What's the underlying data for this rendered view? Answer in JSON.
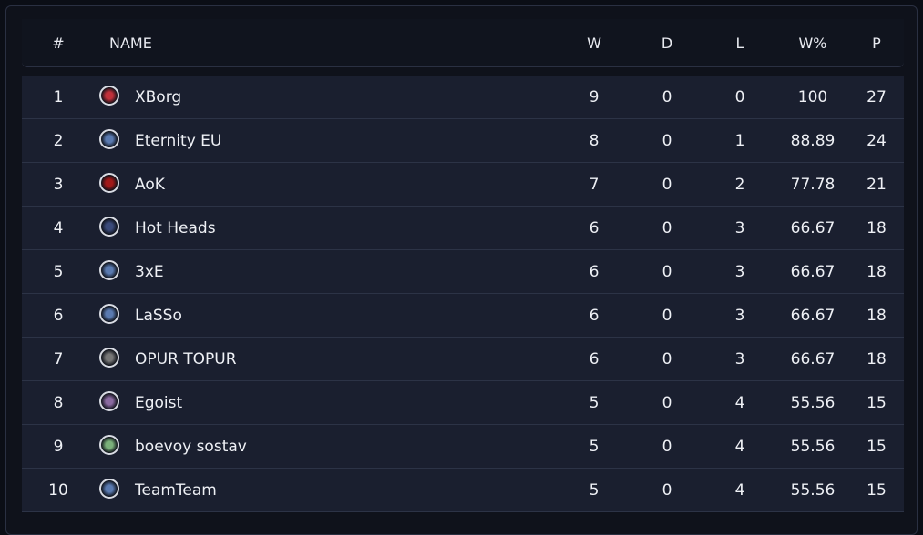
{
  "table": {
    "header": [
      "#",
      "NAME",
      "W",
      "D",
      "L",
      "W%",
      "P"
    ],
    "rows": [
      [
        1,
        "XBorg",
        9,
        0,
        0,
        100,
        27
      ],
      [
        2,
        "Eternity EU",
        8,
        0,
        1,
        88.89,
        24
      ],
      [
        3,
        "AoK",
        7,
        0,
        2,
        77.78,
        21
      ],
      [
        4,
        "Hot Heads",
        6,
        0,
        3,
        66.67,
        18
      ],
      [
        5,
        "3xE",
        6,
        0,
        3,
        66.67,
        18
      ],
      [
        6,
        "LaSSo",
        6,
        0,
        3,
        66.67,
        18
      ],
      [
        7,
        "OPUR TOPUR",
        6,
        0,
        3,
        66.67,
        18
      ],
      [
        8,
        "Egoist",
        5,
        0,
        4,
        55.56,
        15
      ],
      [
        9,
        "boevoy sostav",
        5,
        0,
        4,
        55.56,
        15
      ],
      [
        10,
        "TeamTeam",
        5,
        0,
        4,
        55.56,
        15
      ]
    ]
  }
}
